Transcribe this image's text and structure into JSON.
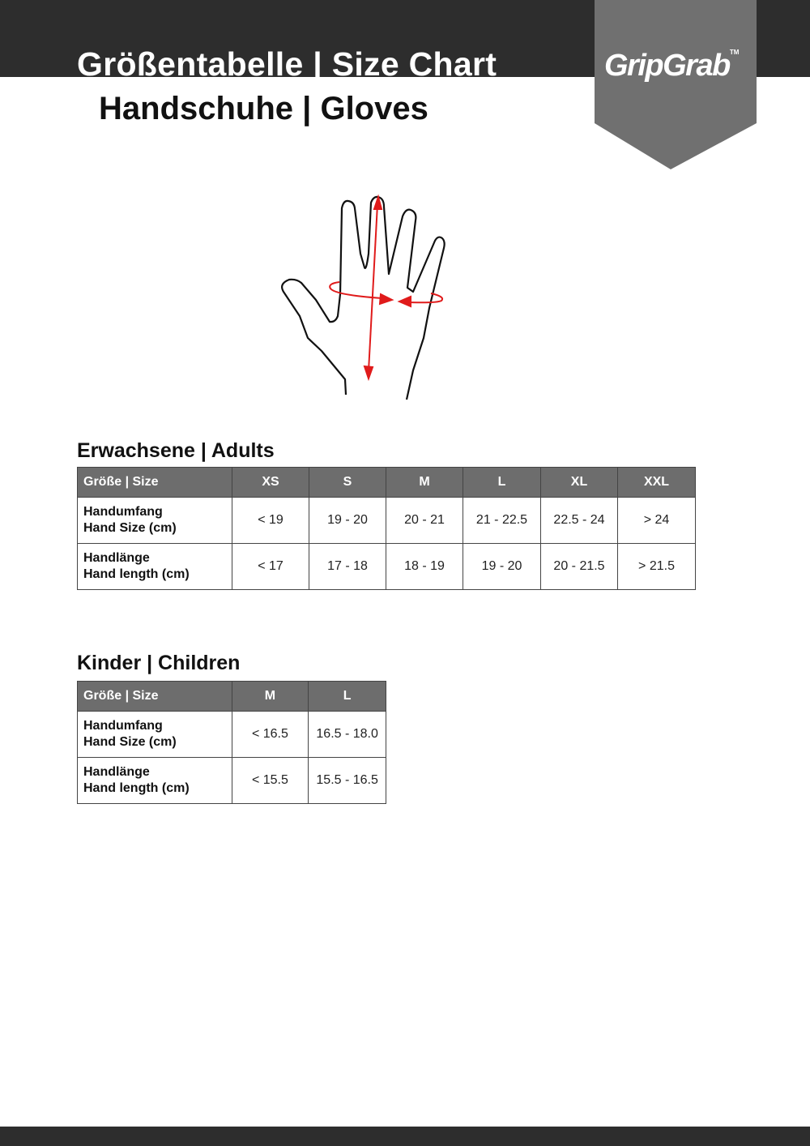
{
  "header": {
    "title": "Größentabelle | Size Chart",
    "subtitle": "Handschuhe | Gloves",
    "logo": "GripGrab",
    "logo_tm": "TM"
  },
  "colors": {
    "band": "#2d2d2d",
    "logo_banner": "#707070",
    "table_header": "#6d6d6d",
    "measure_arrow": "#e01b1b"
  },
  "illustration": {
    "icon": "hand-measurement-icon"
  },
  "adults": {
    "heading": "Erwachsene | Adults",
    "header_label": "Größe | Size",
    "sizes": [
      "XS",
      "S",
      "M",
      "L",
      "XL",
      "XXL"
    ],
    "rows": [
      {
        "label_de": "Handumfang",
        "label_en": "Hand Size (cm)",
        "values": [
          "< 19",
          "19 - 20",
          "20 - 21",
          "21 - 22.5",
          "22.5 - 24",
          "> 24"
        ]
      },
      {
        "label_de": "Handlänge",
        "label_en": "Hand length (cm)",
        "values": [
          "< 17",
          "17 - 18",
          "18 - 19",
          "19 - 20",
          "20 - 21.5",
          "> 21.5"
        ]
      }
    ]
  },
  "children": {
    "heading": "Kinder | Children",
    "header_label": "Größe | Size",
    "sizes": [
      "M",
      "L"
    ],
    "rows": [
      {
        "label_de": "Handumfang",
        "label_en": "Hand Size (cm)",
        "values": [
          "< 16.5",
          "16.5 - 18.0"
        ]
      },
      {
        "label_de": "Handlänge",
        "label_en": "Hand length (cm)",
        "values": [
          "< 15.5",
          "15.5 - 16.5"
        ]
      }
    ]
  }
}
